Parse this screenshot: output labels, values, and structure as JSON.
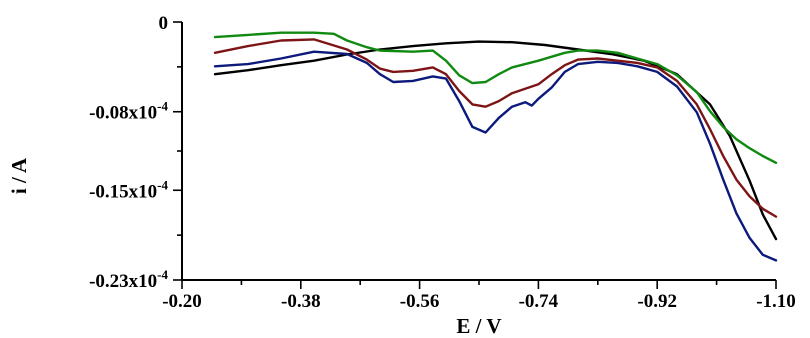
{
  "chart_data": {
    "type": "line",
    "xlabel": "E / V",
    "ylabel": "i / A",
    "xlim": [
      -0.2,
      -1.1
    ],
    "ylim": [
      -0.23,
      0.0
    ],
    "x_ticks": [
      {
        "value": -0.2,
        "label": "-0.20"
      },
      {
        "value": -0.38,
        "label": "-0.38"
      },
      {
        "value": -0.56,
        "label": "-0.56"
      },
      {
        "value": -0.74,
        "label": "-0.74"
      },
      {
        "value": -0.92,
        "label": "-0.92"
      },
      {
        "value": -1.1,
        "label": "-1.10"
      }
    ],
    "y_ticks": [
      {
        "value": 0.0,
        "label": "0"
      },
      {
        "value": -0.08,
        "label": "-0.08x10",
        "exp": "-4"
      },
      {
        "value": -0.15,
        "label": "-0.15x10",
        "exp": "-4"
      },
      {
        "value": -0.23,
        "label": "-0.23x10",
        "exp": "-4"
      }
    ],
    "grid": false,
    "series": [
      {
        "color": "#000000",
        "x": [
          -0.25,
          -0.3,
          -0.35,
          -0.4,
          -0.45,
          -0.5,
          -0.55,
          -0.6,
          -0.65,
          -0.7,
          -0.75,
          -0.8,
          -0.85,
          -0.9,
          -0.95,
          -1.0,
          -1.03,
          -1.06,
          -1.08,
          -1.1
        ],
        "y": [
          -0.0465,
          -0.043,
          -0.0385,
          -0.0345,
          -0.029,
          -0.0245,
          -0.0215,
          -0.019,
          -0.0175,
          -0.018,
          -0.0205,
          -0.0245,
          -0.0285,
          -0.0345,
          -0.0465,
          -0.0735,
          -0.1015,
          -0.1415,
          -0.1715,
          -0.1935
        ]
      },
      {
        "color": "#0c1a7c",
        "x": [
          -0.25,
          -0.3,
          -0.35,
          -0.4,
          -0.45,
          -0.48,
          -0.5,
          -0.52,
          -0.55,
          -0.58,
          -0.6,
          -0.62,
          -0.64,
          -0.66,
          -0.68,
          -0.7,
          -0.72,
          -0.73,
          -0.74,
          -0.76,
          -0.78,
          -0.8,
          -0.83,
          -0.86,
          -0.89,
          -0.92,
          -0.95,
          -0.98,
          -1.0,
          -1.02,
          -1.04,
          -1.06,
          -1.08,
          -1.1
        ],
        "y": [
          -0.0395,
          -0.0375,
          -0.0325,
          -0.0265,
          -0.0285,
          -0.0365,
          -0.0465,
          -0.0535,
          -0.0525,
          -0.0485,
          -0.0505,
          -0.0705,
          -0.0935,
          -0.0985,
          -0.0855,
          -0.0755,
          -0.0715,
          -0.0745,
          -0.0685,
          -0.0585,
          -0.0445,
          -0.0375,
          -0.0355,
          -0.0365,
          -0.0395,
          -0.0445,
          -0.0575,
          -0.0805,
          -0.1085,
          -0.1405,
          -0.1705,
          -0.1925,
          -0.2075,
          -0.2125
        ]
      },
      {
        "color": "#7d1516",
        "x": [
          -0.25,
          -0.3,
          -0.35,
          -0.4,
          -0.45,
          -0.48,
          -0.5,
          -0.52,
          -0.55,
          -0.58,
          -0.6,
          -0.62,
          -0.64,
          -0.66,
          -0.68,
          -0.7,
          -0.74,
          -0.76,
          -0.78,
          -0.8,
          -0.83,
          -0.86,
          -0.89,
          -0.92,
          -0.95,
          -0.98,
          -1.0,
          -1.02,
          -1.04,
          -1.06,
          -1.08,
          -1.1
        ],
        "y": [
          -0.0275,
          -0.0215,
          -0.0165,
          -0.0155,
          -0.0245,
          -0.0335,
          -0.0415,
          -0.0445,
          -0.0435,
          -0.0405,
          -0.0465,
          -0.0615,
          -0.0735,
          -0.0755,
          -0.0705,
          -0.0635,
          -0.0555,
          -0.0465,
          -0.0385,
          -0.0335,
          -0.0325,
          -0.0345,
          -0.0365,
          -0.0405,
          -0.0525,
          -0.0735,
          -0.0955,
          -0.1195,
          -0.1405,
          -0.1555,
          -0.1665,
          -0.1735
        ]
      },
      {
        "color": "#108a10",
        "x": [
          -0.25,
          -0.3,
          -0.35,
          -0.4,
          -0.43,
          -0.45,
          -0.48,
          -0.5,
          -0.55,
          -0.58,
          -0.6,
          -0.62,
          -0.64,
          -0.66,
          -0.68,
          -0.7,
          -0.74,
          -0.78,
          -0.8,
          -0.83,
          -0.86,
          -0.89,
          -0.92,
          -0.95,
          -0.98,
          -1.0,
          -1.02,
          -1.04,
          -1.06,
          -1.08,
          -1.1
        ],
        "y": [
          -0.0135,
          -0.0115,
          -0.0095,
          -0.0095,
          -0.0105,
          -0.0165,
          -0.0225,
          -0.0255,
          -0.0265,
          -0.0255,
          -0.0345,
          -0.0475,
          -0.0545,
          -0.0535,
          -0.0465,
          -0.0405,
          -0.0345,
          -0.0275,
          -0.0255,
          -0.0255,
          -0.0275,
          -0.0325,
          -0.0375,
          -0.0475,
          -0.0625,
          -0.0795,
          -0.0935,
          -0.1045,
          -0.1125,
          -0.1195,
          -0.1255
        ]
      }
    ]
  }
}
